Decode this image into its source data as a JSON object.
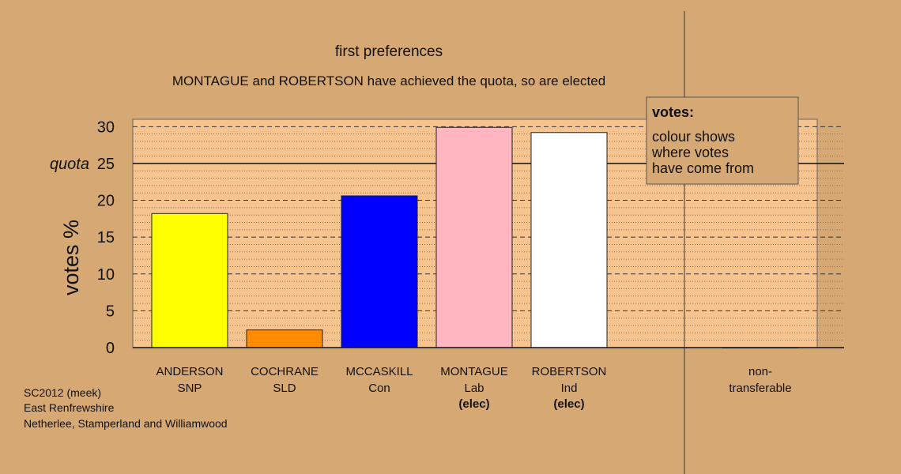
{
  "chart_data": {
    "type": "bar",
    "title": "first preferences",
    "subtitle": "MONTAGUE and ROBERTSON have achieved the quota, so are elected",
    "ylabel": "votes %",
    "ylim": [
      0,
      31
    ],
    "yticks": [
      0,
      5,
      10,
      15,
      20,
      25,
      30
    ],
    "quota": {
      "label": "quota",
      "value": 25
    },
    "categories": [
      {
        "name": "ANDERSON",
        "party": "SNP",
        "status": "",
        "value": 18.2,
        "color": "#ffff00"
      },
      {
        "name": "COCHRANE",
        "party": "SLD",
        "status": "",
        "value": 2.4,
        "color": "#ff8c00"
      },
      {
        "name": "MCCASKILL",
        "party": "Con",
        "status": "",
        "value": 20.6,
        "color": "#0000ff"
      },
      {
        "name": "MONTAGUE",
        "party": "Lab",
        "status": "(elec)",
        "value": 29.9,
        "color": "#ffb6c1"
      },
      {
        "name": "ROBERTSON",
        "party": "Ind",
        "status": "(elec)",
        "value": 29.2,
        "color": "#ffffff"
      }
    ],
    "nontransferable": {
      "label_line1": "non-",
      "label_line2": "transferable",
      "value": 0
    },
    "legend": {
      "title": "votes:",
      "lines": [
        "colour shows",
        "where votes",
        "have come from"
      ]
    },
    "plot_background": "#f7c48f",
    "grid": true
  },
  "footer": {
    "line1": "SC2012 (meek)",
    "line2": "East Renfrewshire",
    "line3": "Netherlee, Stamperland and Williamwood"
  }
}
